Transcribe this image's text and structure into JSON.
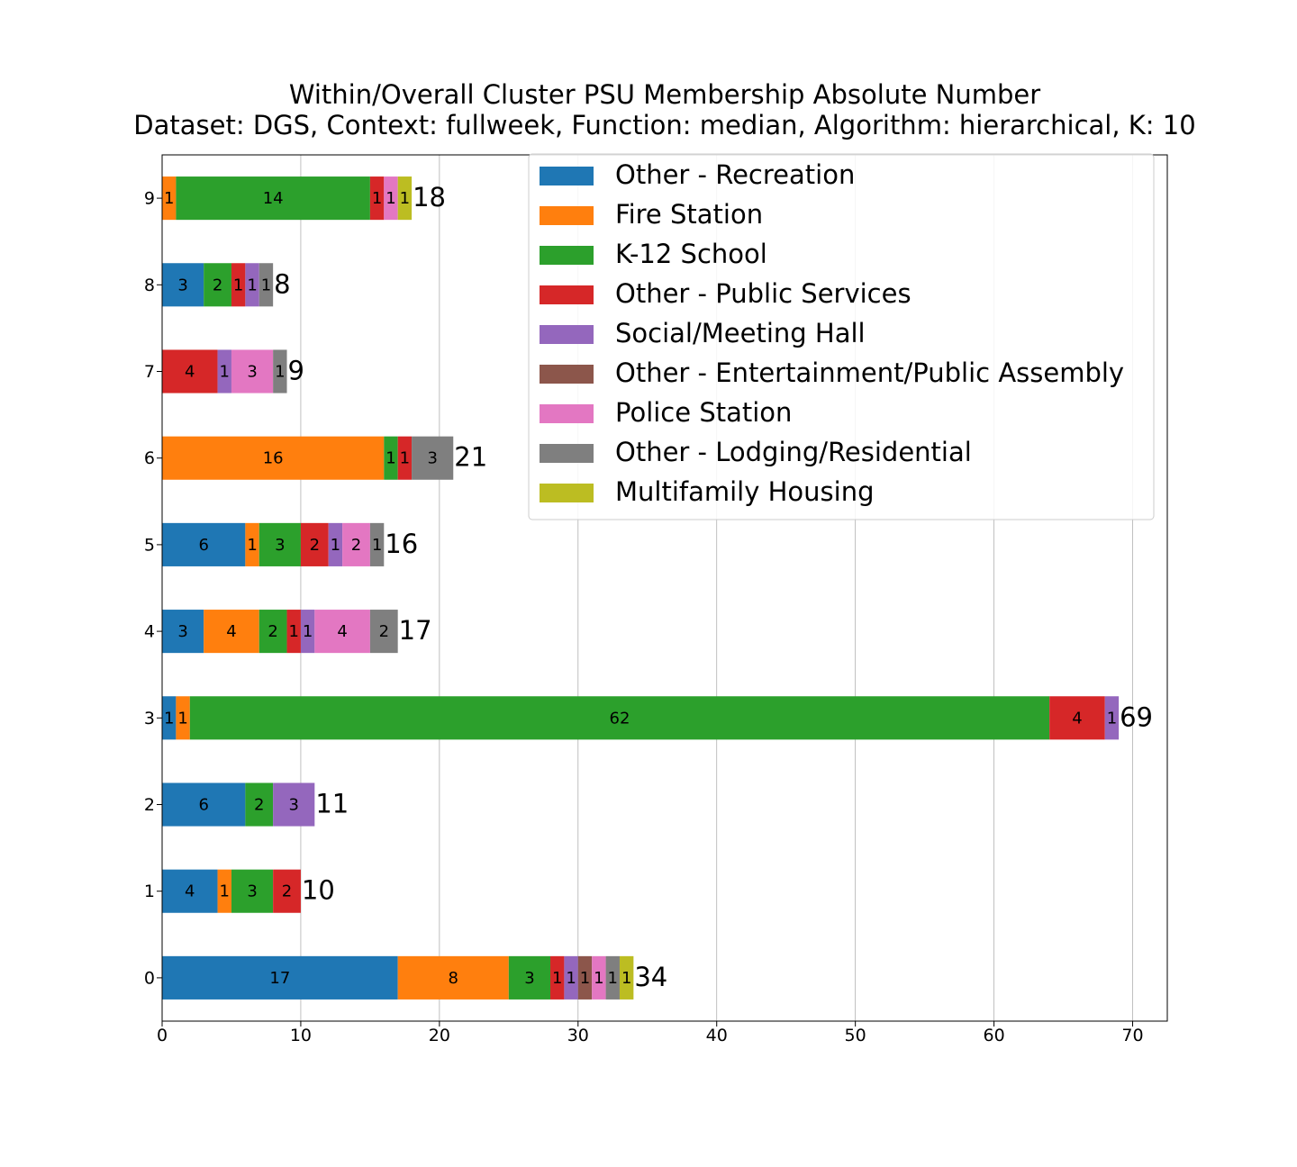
{
  "chart_data": {
    "type": "bar",
    "orientation": "horizontal",
    "stacked": true,
    "title": "Within/Overall Cluster PSU Membership Absolute Number",
    "subtitle": "Dataset: DGS, Context: fullweek, Function: median, Algorithm: hierarchical, K: 10",
    "xlabel": "",
    "ylabel": "",
    "xlim": [
      0,
      72.5
    ],
    "xticks": [
      0,
      10,
      20,
      30,
      40,
      50,
      60,
      70
    ],
    "grid": "x",
    "legend_position": "top-right",
    "categories": [
      "0",
      "1",
      "2",
      "3",
      "4",
      "5",
      "6",
      "7",
      "8",
      "9"
    ],
    "totals": [
      34,
      10,
      11,
      69,
      17,
      16,
      21,
      9,
      8,
      18
    ],
    "series": [
      {
        "name": "Other - Recreation",
        "color": "#1f77b4",
        "values": [
          17,
          4,
          6,
          1,
          3,
          6,
          0,
          0,
          3,
          0
        ]
      },
      {
        "name": "Fire Station",
        "color": "#ff7f0e",
        "values": [
          8,
          1,
          0,
          1,
          4,
          1,
          16,
          0,
          0,
          1
        ]
      },
      {
        "name": "K-12 School",
        "color": "#2ca02c",
        "values": [
          3,
          3,
          2,
          62,
          2,
          3,
          1,
          0,
          2,
          14
        ]
      },
      {
        "name": "Other - Public Services",
        "color": "#d62728",
        "values": [
          1,
          2,
          0,
          4,
          1,
          2,
          1,
          4,
          1,
          1
        ]
      },
      {
        "name": "Social/Meeting Hall",
        "color": "#9467bd",
        "values": [
          1,
          0,
          3,
          1,
          1,
          1,
          0,
          1,
          1,
          0
        ]
      },
      {
        "name": "Other - Entertainment/Public Assembly",
        "color": "#8c564b",
        "values": [
          1,
          0,
          0,
          0,
          0,
          0,
          0,
          0,
          0,
          0
        ]
      },
      {
        "name": "Police Station",
        "color": "#e377c2",
        "values": [
          1,
          0,
          0,
          0,
          4,
          2,
          0,
          3,
          0,
          1
        ]
      },
      {
        "name": "Other - Lodging/Residential",
        "color": "#7f7f7f",
        "values": [
          1,
          0,
          0,
          0,
          2,
          1,
          3,
          1,
          1,
          0
        ]
      },
      {
        "name": "Multifamily Housing",
        "color": "#bcbd22",
        "values": [
          1,
          0,
          0,
          0,
          0,
          0,
          0,
          0,
          0,
          1
        ]
      }
    ]
  }
}
